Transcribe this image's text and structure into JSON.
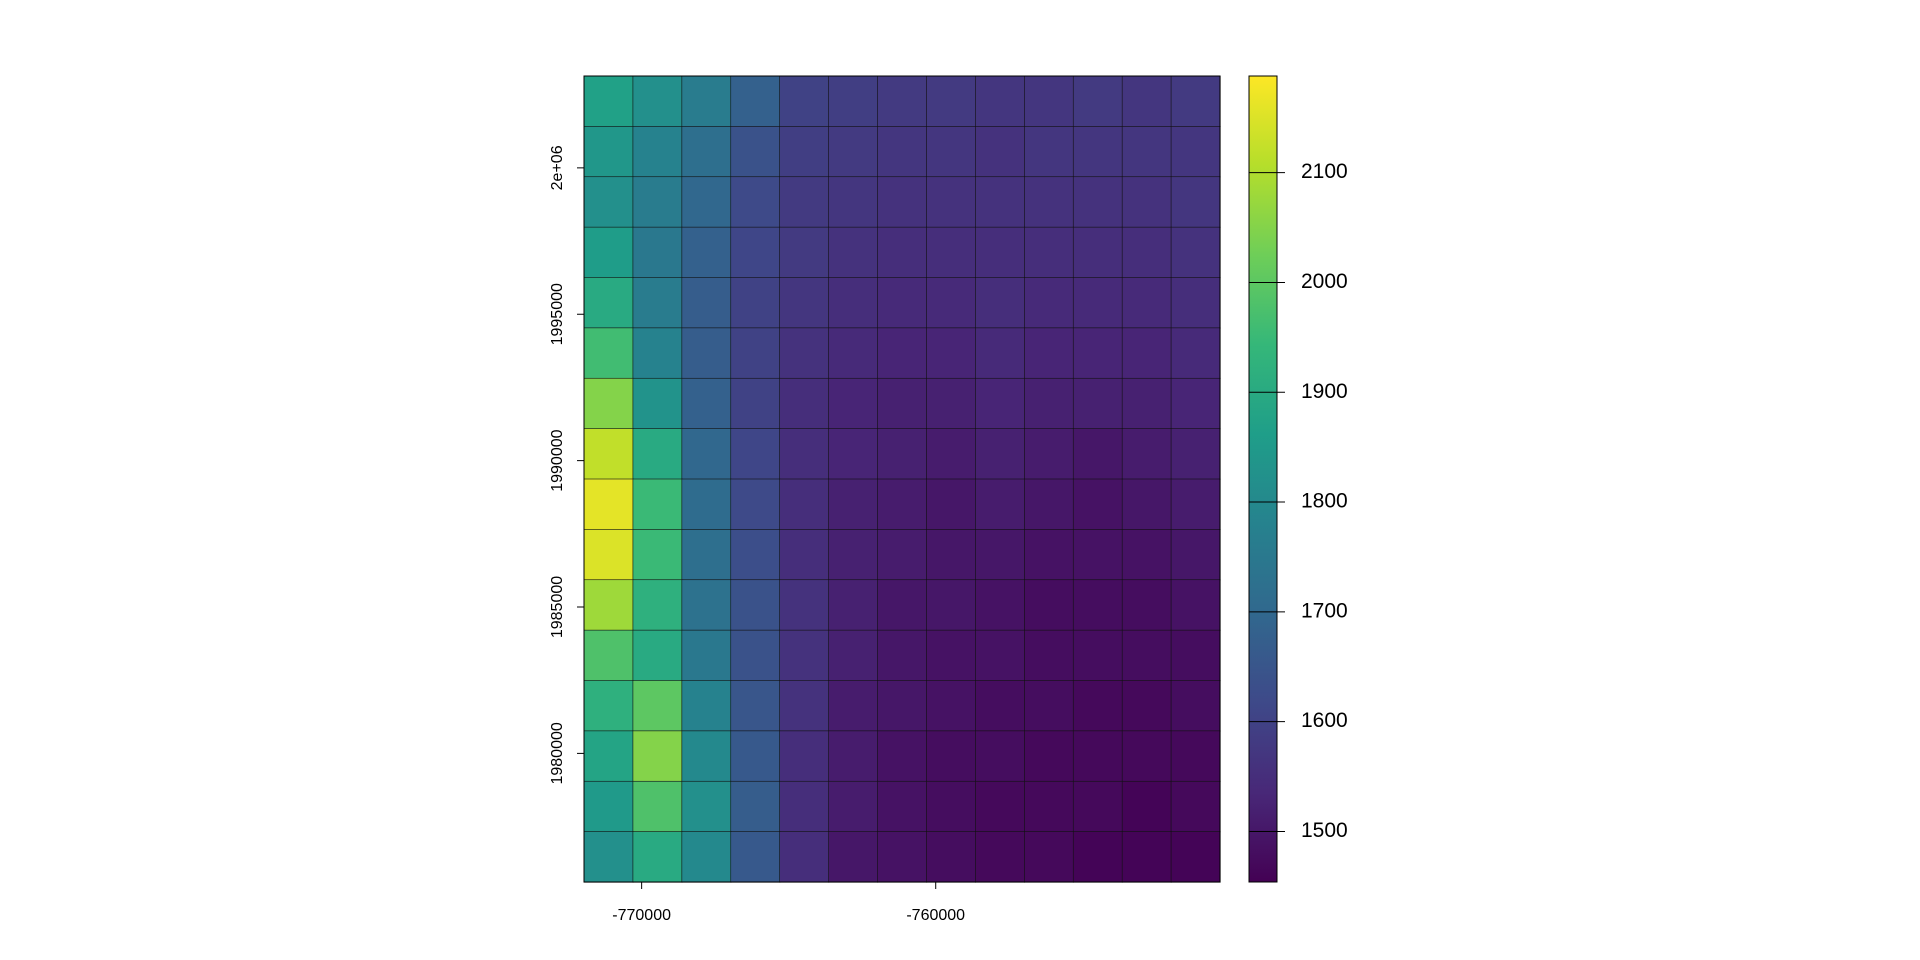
{
  "chart_data": {
    "type": "raster",
    "colormap": "viridis",
    "xlim": [
      -771960,
      -750333
    ],
    "ylim": [
      1975607,
      2003138
    ],
    "xticks": [
      -770000,
      -760000
    ],
    "yticks": [
      {
        "value": 2000000,
        "label": "2e+06"
      },
      1995000,
      1990000,
      1985000,
      1980000
    ],
    "zlim": [
      1454,
      2188
    ],
    "zticks": [
      1500,
      1600,
      1700,
      1800,
      1900,
      2000,
      2100
    ],
    "z": [
      [
        1870,
        1820,
        1760,
        1680,
        1600,
        1590,
        1580,
        1580,
        1570,
        1570,
        1580,
        1570,
        1580
      ],
      [
        1840,
        1780,
        1720,
        1640,
        1590,
        1580,
        1570,
        1570,
        1560,
        1570,
        1570,
        1570,
        1570
      ],
      [
        1820,
        1760,
        1700,
        1620,
        1580,
        1570,
        1560,
        1560,
        1560,
        1560,
        1560,
        1560,
        1570
      ],
      [
        1860,
        1750,
        1680,
        1610,
        1580,
        1560,
        1550,
        1550,
        1550,
        1550,
        1550,
        1550,
        1560
      ],
      [
        1900,
        1760,
        1670,
        1600,
        1570,
        1550,
        1540,
        1540,
        1550,
        1540,
        1540,
        1540,
        1550
      ],
      [
        1960,
        1780,
        1670,
        1600,
        1560,
        1540,
        1530,
        1530,
        1540,
        1530,
        1530,
        1530,
        1540
      ],
      [
        2050,
        1830,
        1680,
        1600,
        1550,
        1530,
        1520,
        1520,
        1530,
        1520,
        1520,
        1520,
        1530
      ],
      [
        2120,
        1900,
        1700,
        1610,
        1550,
        1530,
        1520,
        1510,
        1520,
        1510,
        1500,
        1510,
        1520
      ],
      [
        2160,
        1950,
        1710,
        1620,
        1550,
        1520,
        1510,
        1500,
        1510,
        1500,
        1490,
        1500,
        1510
      ],
      [
        2150,
        1950,
        1720,
        1630,
        1550,
        1520,
        1510,
        1500,
        1500,
        1490,
        1490,
        1490,
        1500
      ],
      [
        2080,
        1920,
        1730,
        1640,
        1560,
        1520,
        1500,
        1500,
        1490,
        1480,
        1480,
        1480,
        1490
      ],
      [
        1980,
        1900,
        1750,
        1640,
        1560,
        1520,
        1500,
        1490,
        1490,
        1480,
        1480,
        1480,
        1480
      ],
      [
        1920,
        2000,
        1780,
        1650,
        1560,
        1510,
        1500,
        1490,
        1480,
        1480,
        1470,
        1470,
        1480
      ],
      [
        1880,
        2050,
        1800,
        1660,
        1550,
        1510,
        1490,
        1480,
        1480,
        1470,
        1470,
        1470,
        1470
      ],
      [
        1850,
        1980,
        1820,
        1670,
        1550,
        1510,
        1490,
        1480,
        1470,
        1470,
        1470,
        1460,
        1470
      ],
      [
        1820,
        1900,
        1800,
        1660,
        1550,
        1500,
        1490,
        1480,
        1470,
        1470,
        1460,
        1460,
        1460
      ]
    ]
  }
}
